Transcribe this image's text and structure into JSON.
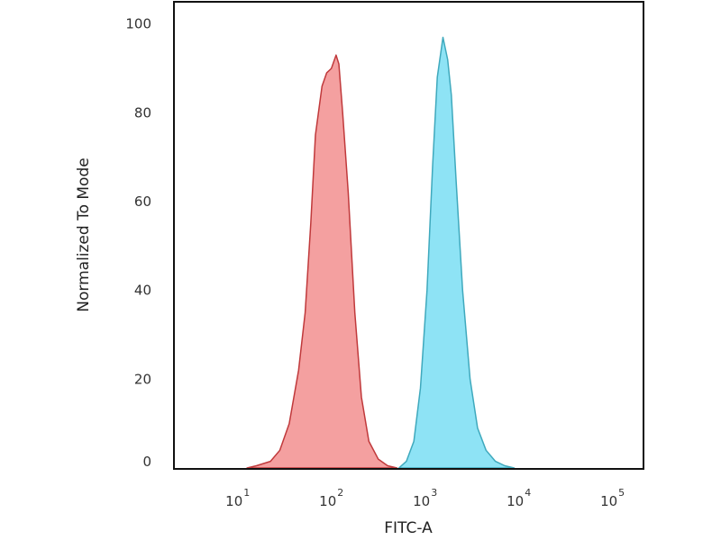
{
  "chart_data": {
    "type": "area",
    "xlabel": "FITC-A",
    "ylabel": "Normalized To Mode",
    "xscale": "log",
    "xlim_log10": [
      0.32,
      5.33
    ],
    "ylim": [
      0,
      105
    ],
    "grid": false,
    "yticks": [
      0,
      20,
      40,
      60,
      80,
      100
    ],
    "yticklabels": [
      "0",
      "20",
      "40",
      "60",
      "80",
      "100"
    ],
    "xticks_exponent": [
      1,
      2,
      3,
      4,
      5
    ],
    "xtick_base": "10",
    "series": [
      {
        "color": "#f4a0a0",
        "line_color": "#c0393b",
        "log10_x": [
          1.1,
          1.2,
          1.35,
          1.45,
          1.55,
          1.65,
          1.72,
          1.78,
          1.83,
          1.9,
          1.95,
          2.0,
          2.05,
          2.08,
          2.12,
          2.18,
          2.25,
          2.32,
          2.4,
          2.5,
          2.6,
          2.7
        ],
        "y": [
          0,
          0.5,
          1.5,
          4,
          10,
          22,
          35,
          55,
          75,
          86,
          89,
          90,
          93,
          91,
          80,
          62,
          35,
          16,
          6,
          2,
          0.5,
          0
        ]
      },
      {
        "color": "#8ee3f5",
        "line_color": "#3fa9bd",
        "log10_x": [
          2.72,
          2.8,
          2.88,
          2.95,
          3.02,
          3.08,
          3.13,
          3.19,
          3.24,
          3.28,
          3.33,
          3.4,
          3.48,
          3.56,
          3.65,
          3.75,
          3.85,
          3.95
        ],
        "y": [
          0,
          1.5,
          6,
          18,
          40,
          68,
          88,
          97,
          92,
          84,
          65,
          40,
          20,
          9,
          4,
          1.5,
          0.5,
          0
        ]
      }
    ]
  }
}
